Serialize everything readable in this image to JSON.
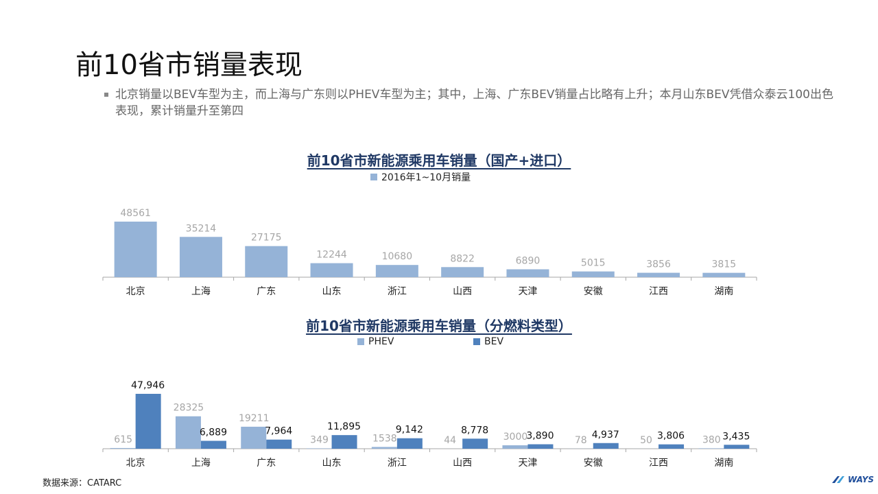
{
  "slide": {
    "title": "前10省市销量表现",
    "bullet": "北京销量以BEV车型为主，而上海与广东则以PHEV车型为主；其中，上海、广东BEV销量占比略有上升；本月山东BEV凭借众泰云100出色表现，累计销量升至第四",
    "source": "数据来源：CATARC",
    "logo": "WAYS"
  },
  "colors": {
    "total": "#95B3D7",
    "phev": "#95B3D7",
    "bev": "#4F81BD",
    "title": "#1F3864",
    "axis": "#A6A6A6",
    "label_grey": "#A6A6A6"
  },
  "chart_data": [
    {
      "type": "bar",
      "title": "前10省市新能源乘用车销量（国产+进口）",
      "categories": [
        "北京",
        "上海",
        "广东",
        "山东",
        "浙江",
        "山西",
        "天津",
        "安徽",
        "江西",
        "湖南"
      ],
      "series": [
        {
          "name": "2016年1~10月销量",
          "values": [
            48561,
            35214,
            27175,
            12244,
            10680,
            8822,
            6890,
            5015,
            3856,
            3815
          ],
          "labels": [
            "48561",
            "35214",
            "27175",
            "12244",
            "10680",
            "8822",
            "6890",
            "5015",
            "3856",
            "3815"
          ]
        }
      ],
      "ylim": [
        0,
        48561
      ],
      "legend": "top-center",
      "grid": false
    },
    {
      "type": "bar",
      "title": "前10省市新能源乘用车销量（分燃料类型）",
      "categories": [
        "北京",
        "上海",
        "广东",
        "山东",
        "浙江",
        "山西",
        "天津",
        "安徽",
        "江西",
        "湖南"
      ],
      "series": [
        {
          "name": "PHEV",
          "values": [
            615,
            28325,
            19211,
            349,
            1538,
            44,
            3000,
            78,
            50,
            380
          ],
          "labels": [
            "615",
            "28325",
            "19211",
            "349",
            "1538",
            "44",
            "3000",
            "78",
            "50",
            "380"
          ]
        },
        {
          "name": "BEV",
          "values": [
            47946,
            6889,
            7964,
            11895,
            9142,
            8778,
            3890,
            4937,
            3806,
            3435
          ],
          "labels": [
            "47,946",
            "6,889",
            "7,964",
            "11,895",
            "9,142",
            "8,778",
            "3,890",
            "4,937",
            "3,806",
            "3,435"
          ]
        }
      ],
      "ylim": [
        0,
        47946
      ],
      "legend": "top-center",
      "grid": false
    }
  ]
}
